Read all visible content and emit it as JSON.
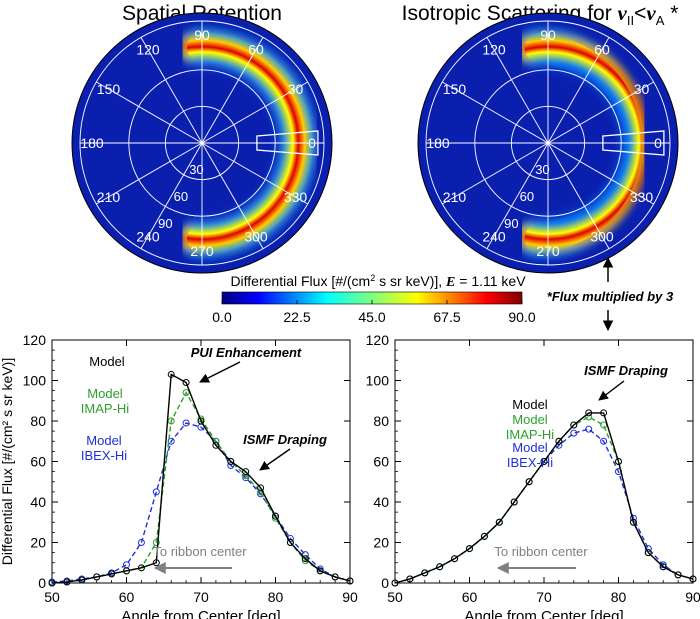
{
  "colors": {
    "model": "#000000",
    "imap": "#2ca02c",
    "ibex": "#1f2fd9",
    "arrow_gray": "#808080",
    "disk_bg": "#0a1fae"
  },
  "note": {
    "flux_multiplied": "*Flux multiplied by 3"
  },
  "chart_data": [
    {
      "type": "heatmap",
      "panel": "polar-left",
      "title": "Spatial Retention",
      "angle_labels": [
        "90",
        "60",
        "30",
        "0",
        "330",
        "300",
        "270",
        "240",
        "210",
        "180",
        "150",
        "120"
      ],
      "radius_labels": [
        "30",
        "60",
        "90"
      ],
      "ring_radius_fraction": 0.74,
      "ring_center_angle_deg": 0,
      "ring_extent_deg": 90
    },
    {
      "type": "heatmap",
      "panel": "polar-right",
      "title_prefix": "Isotropic Scattering for ",
      "title_var1": "ν",
      "title_sub1": "II",
      "title_mid": "<",
      "title_var2": "ν",
      "title_sub2": "A",
      "title_suffix": " *",
      "angle_labels": [
        "90",
        "60",
        "30",
        "0",
        "330",
        "300",
        "270",
        "240",
        "210",
        "180",
        "150",
        "120"
      ],
      "radius_labels": [
        "30",
        "60",
        "90"
      ],
      "ring_radius_fraction": 0.74,
      "ring_center_angle_deg": 0,
      "ring_extent_deg": 95
    },
    {
      "type": "colorbar",
      "label_prefix": "Differential Flux [#/(cm",
      "label_sup": "2",
      "label_mid": " s sr keV)], ",
      "label_var": "E",
      "label_suffix": " = 1.11 keV",
      "range": [
        0.0,
        90.0
      ],
      "ticks": [
        "0.0",
        "22.5",
        "45.0",
        "67.5",
        "90.0"
      ]
    },
    {
      "type": "line",
      "panel": "line-left",
      "xlabel": "Angle from Center [deg]",
      "ylabel": "Differential Flux [#/(cm² s sr keV)]",
      "xlim": [
        50,
        90
      ],
      "ylim": [
        0,
        120
      ],
      "xticks": [
        "50",
        "60",
        "70",
        "80",
        "90"
      ],
      "yticks": [
        "0",
        "20",
        "40",
        "60",
        "80",
        "100",
        "120"
      ],
      "x": [
        50,
        52,
        54,
        56,
        58,
        60,
        62,
        64,
        66,
        68,
        70,
        72,
        74,
        76,
        78,
        80,
        82,
        84,
        86,
        88,
        90
      ],
      "series": [
        {
          "name": "Model",
          "style": "solid",
          "values": [
            0,
            0.5,
            1.5,
            3,
            4.5,
            6,
            7.5,
            10,
            103,
            99,
            80,
            68,
            60,
            55,
            47,
            33,
            20,
            12,
            6,
            3,
            1
          ]
        },
        {
          "name": "Model IMAP-Hi",
          "style": "dashed",
          "values": [
            0,
            0.5,
            1.5,
            3,
            4.5,
            6,
            7.5,
            20,
            80,
            94,
            81,
            70,
            60,
            53,
            45,
            32,
            20,
            11,
            6,
            3,
            1
          ]
        },
        {
          "name": "Model IBEX-Hi",
          "style": "dashed",
          "values": [
            0.5,
            1,
            2,
            3,
            5,
            9,
            20,
            45,
            70,
            79,
            77,
            70,
            58,
            52,
            44,
            33,
            22,
            14,
            7,
            3,
            1
          ]
        }
      ],
      "legend": [
        {
          "line1": "Model",
          "line2": ""
        },
        {
          "line1": "Model",
          "line2": "IMAP-Hi"
        },
        {
          "line1": "Model",
          "line2": "IBEX-Hi"
        }
      ],
      "annotations": [
        "PUI Enhancement",
        "ISMF Draping",
        "To ribbon center"
      ]
    },
    {
      "type": "line",
      "panel": "line-right",
      "xlabel": "Angle from Center [deg]",
      "xlim": [
        50,
        90
      ],
      "ylim": [
        0,
        120
      ],
      "xticks": [
        "50",
        "60",
        "70",
        "80",
        "90"
      ],
      "yticks": [
        "0",
        "20",
        "40",
        "60",
        "80",
        "100",
        "120"
      ],
      "x": [
        50,
        52,
        54,
        56,
        58,
        60,
        62,
        64,
        66,
        68,
        70,
        72,
        74,
        76,
        78,
        80,
        82,
        84,
        86,
        88,
        90
      ],
      "series": [
        {
          "name": "Model",
          "style": "solid",
          "values": [
            0,
            2,
            5,
            8,
            12,
            17,
            23,
            30,
            40,
            50,
            60,
            70,
            78,
            84,
            84,
            60,
            30,
            15,
            8,
            4,
            2
          ]
        },
        {
          "name": "Model IMAP-Hi",
          "style": "dashed",
          "values": [
            0,
            2,
            5,
            8,
            12,
            17,
            23,
            30,
            40,
            50,
            60,
            70,
            78,
            82,
            78,
            60,
            30,
            15,
            8,
            4,
            2
          ]
        },
        {
          "name": "Model IBEX-Hi",
          "style": "dashed",
          "values": [
            0,
            2,
            5,
            8,
            12,
            17,
            23,
            30,
            40,
            50,
            60,
            68,
            74,
            76,
            70,
            55,
            32,
            17,
            9,
            4,
            2
          ]
        }
      ],
      "legend": [
        {
          "line1": "Model",
          "line2": ""
        },
        {
          "line1": "Model",
          "line2": "IMAP-Hi"
        },
        {
          "line1": "Model",
          "line2": "IBEX-Hi"
        }
      ],
      "annotations": [
        "ISMF Draping",
        "To ribbon center"
      ]
    }
  ]
}
